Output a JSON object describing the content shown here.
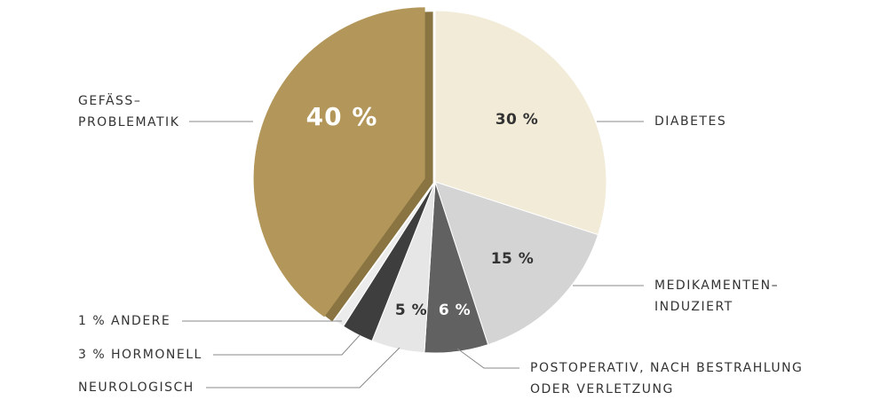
{
  "chart_data": {
    "type": "pie",
    "categories": [
      [
        "DIABETES"
      ],
      [
        "MEDIKAMENTEN–",
        "INDUZIERT"
      ],
      [
        "POSTOPERATIV,  NACH BESTRAHLUNG",
        "ODER VERLETZUNG"
      ],
      [
        "NEUROLOGISCH"
      ],
      [
        "HORMONELL"
      ],
      [
        "ANDERE"
      ],
      [
        "GEFÄSS–",
        "PROBLEMATIK"
      ]
    ],
    "values": [
      30,
      15,
      6,
      5,
      3,
      1,
      40
    ],
    "value_labels": [
      "30 %",
      "15 %",
      "6 %",
      "5 %",
      "3 %",
      "1 %",
      "40 %"
    ],
    "colors": [
      "#f1ebd8",
      "#d4d4d4",
      "#616161",
      "#e6e6e6",
      "#3e3e3e",
      "#ececec",
      "#b39659"
    ],
    "exploded": [
      6
    ]
  }
}
